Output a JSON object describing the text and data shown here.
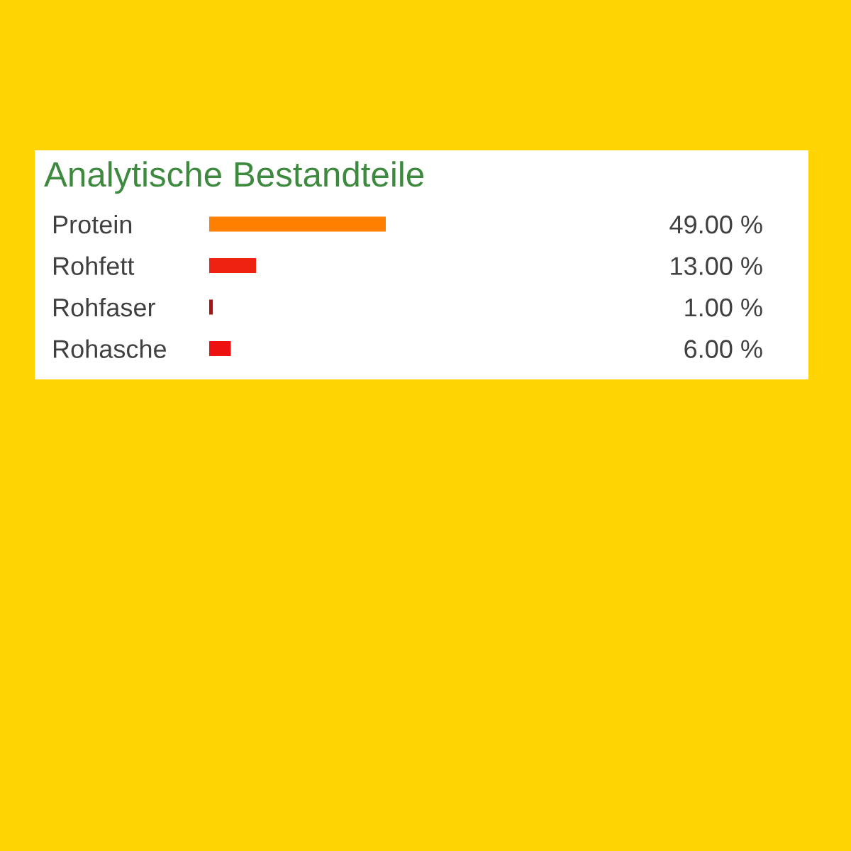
{
  "chart_data": {
    "type": "bar",
    "orientation": "horizontal",
    "title": "Analytische Bestandteile",
    "categories": [
      "Protein",
      "Rohfett",
      "Rohfaser",
      "Rohasche"
    ],
    "values": [
      49,
      13,
      1,
      6
    ],
    "colors": [
      "#ff7f00",
      "#ee2211",
      "#b01010",
      "#ee1111"
    ],
    "value_labels": [
      "49.00 %",
      "13.00 %",
      "1.00 %",
      "6.00 %"
    ],
    "tick_labels": "y"
  }
}
